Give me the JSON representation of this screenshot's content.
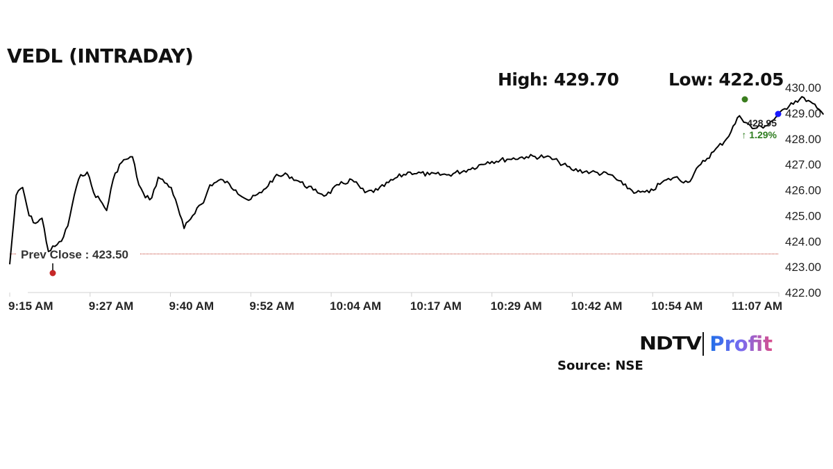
{
  "header": {
    "title": "VEDL (INTRADAY)",
    "high_label": "High: 429.70",
    "low_label": "Low: 422.05"
  },
  "annotations": {
    "prev_close_label": "Prev Close : 423.50",
    "last_price": "428.95",
    "change": "↑ 1.29%"
  },
  "branding": {
    "logo_ndtv": "NDTV",
    "logo_profit": "Profit",
    "source": "Source: NSE"
  },
  "colors": {
    "line": "#000000",
    "prev_close_line": "#c0392b",
    "high_marker": "#3a7d1e",
    "low_marker": "#c62828",
    "last_marker": "#1a1aff",
    "change_positive": "#2e7d1f"
  },
  "chart_data": {
    "type": "line",
    "title": "VEDL (INTRADAY)",
    "xlabel": "",
    "ylabel": "",
    "ylim": [
      422,
      430
    ],
    "y_ticks": [
      "430.00",
      "429.00",
      "428.00",
      "427.00",
      "426.00",
      "425.00",
      "424.00",
      "423.00",
      "422.00"
    ],
    "x_ticks": [
      "9:15 AM",
      "9:27 AM",
      "9:40 AM",
      "9:52 AM",
      "10:04 AM",
      "10:17 AM",
      "10:29 AM",
      "10:42 AM",
      "10:54 AM",
      "11:07 AM"
    ],
    "grid": false,
    "legend": "none",
    "high": 429.7,
    "low": 422.05,
    "prev_close": 423.5,
    "last": 428.95,
    "change_pct": 1.29,
    "series": [
      {
        "name": "VEDL",
        "x": [
          "9:15",
          "9:16",
          "9:17",
          "9:18",
          "9:19",
          "9:20",
          "9:21",
          "9:22",
          "9:23",
          "9:24",
          "9:25",
          "9:26",
          "9:27",
          "9:28",
          "9:29",
          "9:30",
          "9:31",
          "9:32",
          "9:33",
          "9:34",
          "9:35",
          "9:36",
          "9:37",
          "9:38",
          "9:40",
          "9:42",
          "9:44",
          "9:45",
          "9:46",
          "9:48",
          "9:50",
          "9:52",
          "9:54",
          "9:56",
          "9:58",
          "10:00",
          "10:02",
          "10:04",
          "10:06",
          "10:08",
          "10:10",
          "10:12",
          "10:15",
          "10:17",
          "10:20",
          "10:23",
          "10:26",
          "10:29",
          "10:32",
          "10:35",
          "10:38",
          "10:40",
          "10:42",
          "10:45",
          "10:48",
          "10:50",
          "10:52",
          "10:54",
          "10:56",
          "10:58",
          "11:00",
          "11:02",
          "11:04",
          "11:06",
          "11:08",
          "11:10",
          "11:12",
          "11:14",
          "11:16",
          "11:18",
          "11:20",
          "11:21"
        ],
        "values": [
          423.1,
          425.8,
          426.1,
          425.0,
          424.7,
          424.9,
          423.6,
          423.8,
          424.0,
          424.6,
          425.8,
          426.6,
          426.7,
          425.9,
          425.6,
          425.2,
          426.4,
          427.0,
          427.2,
          427.3,
          426.2,
          425.7,
          425.7,
          426.5,
          426.1,
          424.5,
          425.3,
          425.5,
          426.2,
          426.4,
          426.0,
          425.6,
          425.9,
          426.5,
          426.6,
          426.3,
          426.0,
          425.8,
          426.2,
          426.4,
          425.9,
          426.0,
          426.5,
          426.7,
          426.6,
          426.6,
          426.8,
          427.1,
          427.2,
          427.3,
          427.3,
          427.1,
          426.8,
          426.7,
          426.6,
          426.2,
          425.9,
          425.9,
          426.3,
          426.5,
          426.3,
          427.0,
          427.5,
          428.0,
          428.9,
          428.4,
          428.5,
          428.9,
          429.4,
          429.6,
          429.2,
          428.95
        ]
      }
    ]
  }
}
